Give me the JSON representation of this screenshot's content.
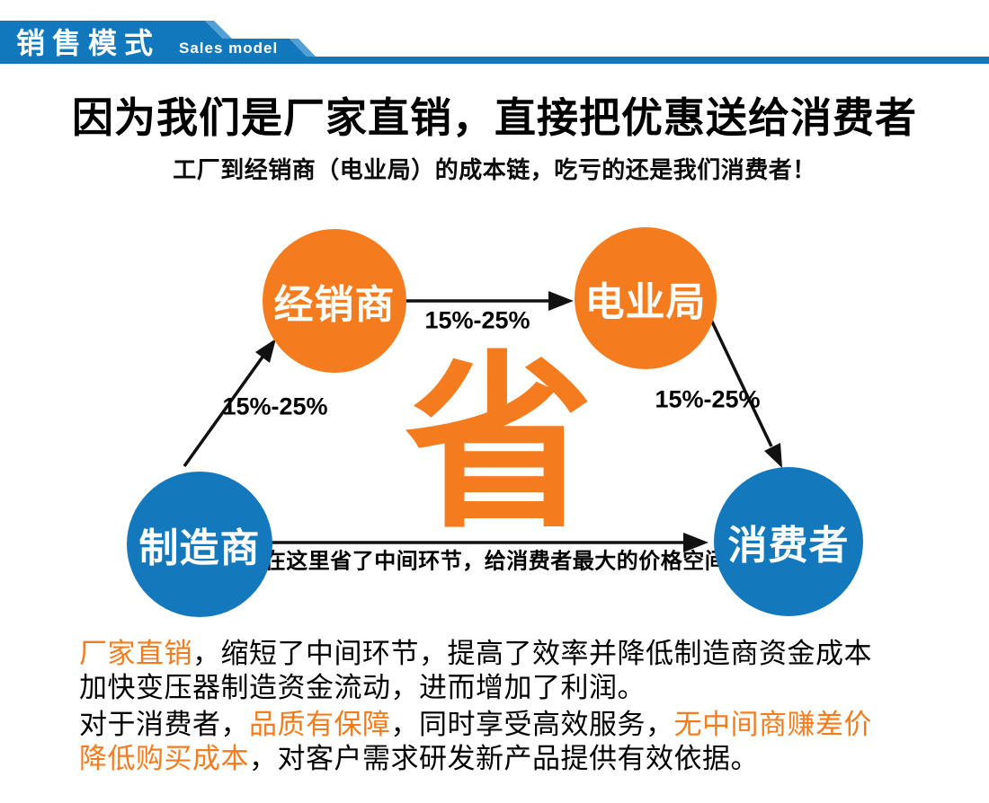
{
  "banner": {
    "title_cn": "销售模式",
    "title_en": "Sales model"
  },
  "headline": {
    "title": "因为我们是厂家直销，直接把优惠送给消费者",
    "subtitle": "工厂到经销商（电业局）的成本链，吃亏的还是我们消费者！"
  },
  "diagram": {
    "save_character": "省",
    "nodes": [
      {
        "id": "distributor",
        "label": "经销商",
        "color": "#f57c1e"
      },
      {
        "id": "power-bureau",
        "label": "电业局",
        "color": "#f57c1e"
      },
      {
        "id": "manufacturer",
        "label": "制造商",
        "color": "#1478bd"
      },
      {
        "id": "consumer",
        "label": "消费者",
        "color": "#1478bd"
      }
    ],
    "edge_labels": {
      "distributor_to_bureau": "15%-25%",
      "manufacturer_to_distributor": "15%-25%",
      "bureau_to_consumer": "15%-25%",
      "manufacturer_to_consumer": "在这里省了中间环节，给消费者最大的价格空间"
    }
  },
  "paragraphs": [
    {
      "segments": [
        {
          "text": "厂家直销",
          "style": "orange"
        },
        {
          "text": "，缩短了中间环节，提高了效率并降低制造商资金成本\n加快变压器制造资金流动，进而增加了利润。",
          "style": "black"
        }
      ]
    },
    {
      "segments": [
        {
          "text": "对于消费者，",
          "style": "black"
        },
        {
          "text": "品质有保障",
          "style": "orange"
        },
        {
          "text": "，同时享受高效服务，",
          "style": "black"
        },
        {
          "text": "无中间商赚差价\n降低购买成本",
          "style": "orange"
        },
        {
          "text": "，对客户需求研发新产品提供有效依据。",
          "style": "black"
        }
      ]
    }
  ],
  "colors": {
    "orange": "#f57c1e",
    "blue": "#1478bd",
    "banner_blue": "#1278bd",
    "banner_bevel_blue": "#529fd3",
    "text_black": "#000000",
    "white": "#ffffff"
  }
}
